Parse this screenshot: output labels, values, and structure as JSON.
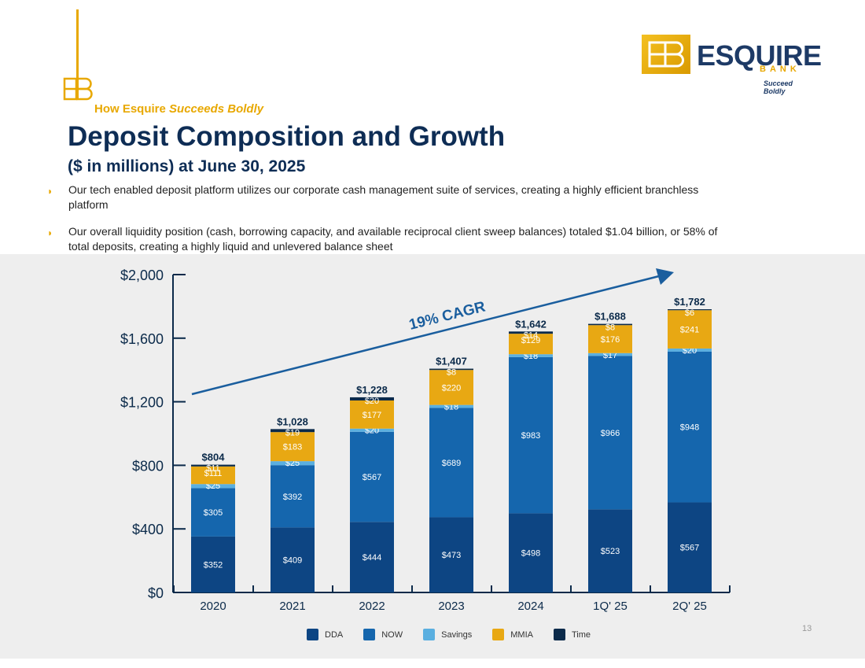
{
  "header": {
    "section_prefix": "How Esquire ",
    "section_emphasis": "Succeeds Boldly",
    "title": "Deposit Composition and Growth",
    "subtitle": "($ in millions) at June 30, 2025"
  },
  "brand": {
    "name": "ESQUIRE",
    "sub": "BANK",
    "tagline": "Succeed Boldly",
    "mark": "EB"
  },
  "bullets": [
    "Our tech enabled deposit platform utilizes our corporate cash management suite of services, creating a highly efficient branchless platform",
    "Our overall liquidity position (cash, borrowing capacity, and available reciprocal client sweep balances) totaled $1.04 billion, or 58% of total deposits, creating a highly liquid and unlevered balance sheet"
  ],
  "page_number": "13",
  "colors": {
    "DDA": "#0d4583",
    "NOW": "#1566ad",
    "Savings": "#5aafe0",
    "MMIA": "#e8a813",
    "Time": "#0b2a4a",
    "accent": "#e8a800",
    "title": "#0e2d55",
    "arrow": "#1a5e9e"
  },
  "chart_data": {
    "type": "bar",
    "stacked": true,
    "categories": [
      "2020",
      "2021",
      "2022",
      "2023",
      "2024",
      "1Q' 25",
      "2Q' 25"
    ],
    "series": [
      {
        "name": "DDA",
        "values": [
          352,
          409,
          444,
          473,
          498,
          523,
          567
        ]
      },
      {
        "name": "NOW",
        "values": [
          305,
          392,
          567,
          689,
          983,
          966,
          948
        ]
      },
      {
        "name": "Savings",
        "values": [
          25,
          25,
          20,
          18,
          18,
          17,
          20
        ]
      },
      {
        "name": "MMIA",
        "values": [
          111,
          183,
          177,
          220,
          129,
          176,
          241
        ]
      },
      {
        "name": "Time",
        "values": [
          11,
          19,
          20,
          8,
          14,
          8,
          6
        ]
      }
    ],
    "totals": [
      "$804",
      "$1,028",
      "$1,228",
      "$1,407",
      "$1,642",
      "$1,688",
      "$1,782"
    ],
    "y_ticks": [
      "$0",
      "$400",
      "$800",
      "$1,200",
      "$1,600",
      "$2,000"
    ],
    "ylim": [
      0,
      2000
    ],
    "annotation": "19% CAGR",
    "legend_position": "bottom"
  }
}
